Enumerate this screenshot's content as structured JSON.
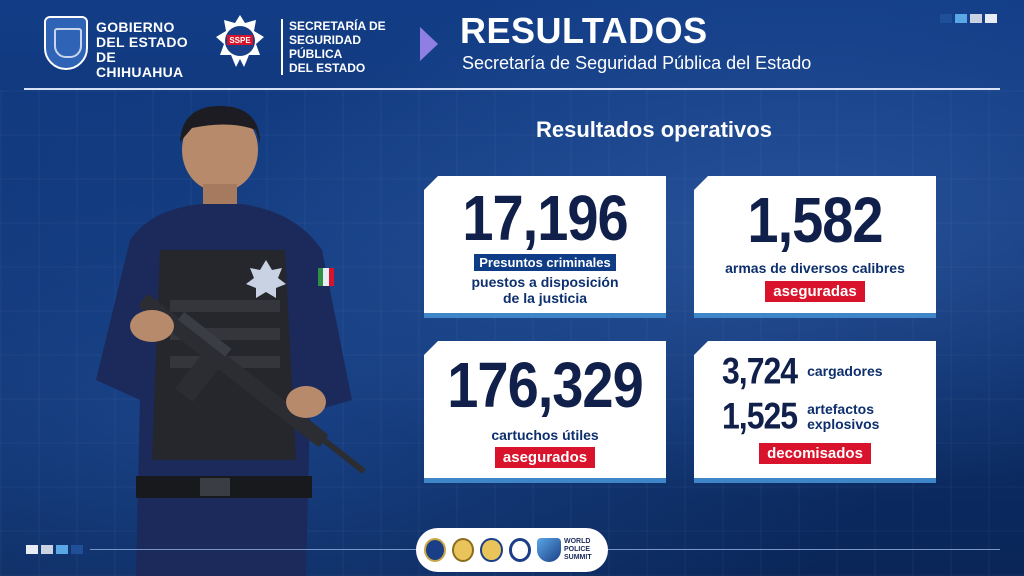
{
  "header": {
    "gobierno_lines": [
      "GOBIERNO",
      "DEL ESTADO",
      "DE CHIHUAHUA"
    ],
    "sspe_badge": "SSPE",
    "sspe_lines": [
      "SECRETARÍA DE",
      "SEGURIDAD PÚBLICA",
      "DEL ESTADO"
    ],
    "title": "RESULTADOS",
    "subtitle": "Secretaría de Seguridad Pública del Estado"
  },
  "section_title": "Resultados operativos",
  "cards": [
    {
      "number": "17,196",
      "highlight": "Presuntos criminales",
      "description_lines": [
        "puestos a disposición",
        "de la justicia"
      ]
    },
    {
      "number": "1,582",
      "description": "armas de diversos calibres",
      "tag": "aseguradas"
    },
    {
      "number": "176,329",
      "description": "cartuchos útiles",
      "tag": "asegurados"
    },
    {
      "items": [
        {
          "number": "3,724",
          "label_lines": [
            "cargadores"
          ]
        },
        {
          "number": "1,525",
          "label_lines": [
            "artefactos",
            "explosivos"
          ]
        }
      ],
      "tag": "decomisados"
    }
  ],
  "footer": {
    "wps_lines": [
      "WORLD",
      "POLICE",
      "SUMMIT"
    ]
  },
  "colors": {
    "background": "#0c2f6c",
    "card": "#ffffff",
    "number_text": "#10204a",
    "tag_red": "#d8132b",
    "tag_blue": "#0e3c86",
    "accent_purple": "#8f7fe2",
    "card_underline": "#3f86c8"
  },
  "icons": {
    "gobierno_logo": "chihuahua-state-shield-icon",
    "sspe_logo": "sspe-badge-icon",
    "header_arrow": "chevron-right-icon",
    "footer_logos": [
      "sspe-seal-icon",
      "calea-seal-icon",
      "calea-seal-icon",
      "police-seal-icon",
      "world-police-summit-icon"
    ]
  }
}
